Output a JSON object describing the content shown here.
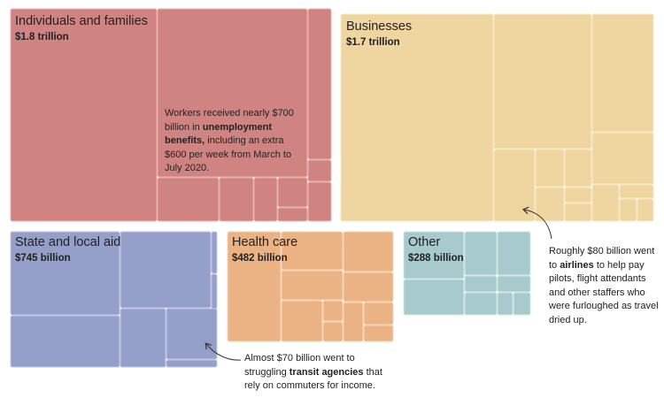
{
  "chart_data": {
    "type": "treemap",
    "groups": [
      {
        "id": "individuals",
        "name": "Individuals and families",
        "amount_label": "$1.8 trillion",
        "color": "#d08482",
        "line_color": "#e7b1ae",
        "sub_rects": 14
      },
      {
        "id": "businesses",
        "name": "Businesses",
        "amount_label": "$1.7 trillion",
        "color": "#efd5a0",
        "line_color": "#f8e8c8",
        "sub_rects": 13
      },
      {
        "id": "state",
        "name": "State and local aid",
        "amount_label": "$745 billion",
        "color": "#949fca",
        "line_color": "#c2c8e3",
        "sub_rects": 8
      },
      {
        "id": "health",
        "name": "Health care",
        "amount_label": "$482 billion",
        "color": "#ebb283",
        "line_color": "#f6d6ba",
        "sub_rects": 11
      },
      {
        "id": "other",
        "name": "Other",
        "amount_label": "$288 billion",
        "color": "#a7cbcd",
        "line_color": "#d2e7e8",
        "sub_rects": 8
      }
    ]
  },
  "annotations": {
    "unemployment": {
      "pre": "Workers received nearly $700 billion in ",
      "bold": "unemployment benefits,",
      "post": " including an extra $600 per week from March to July 2020."
    },
    "airlines": {
      "pre": "Roughly $80 billion went to ",
      "bold": "airlines",
      "post": " to help pay pilots, flight attendants and other staffers who were furloughed as travel dried up."
    },
    "transit": {
      "pre": "Almost $70 billion went to struggling ",
      "bold": "transit agencies",
      "post": " that rely on commuters for income."
    }
  }
}
